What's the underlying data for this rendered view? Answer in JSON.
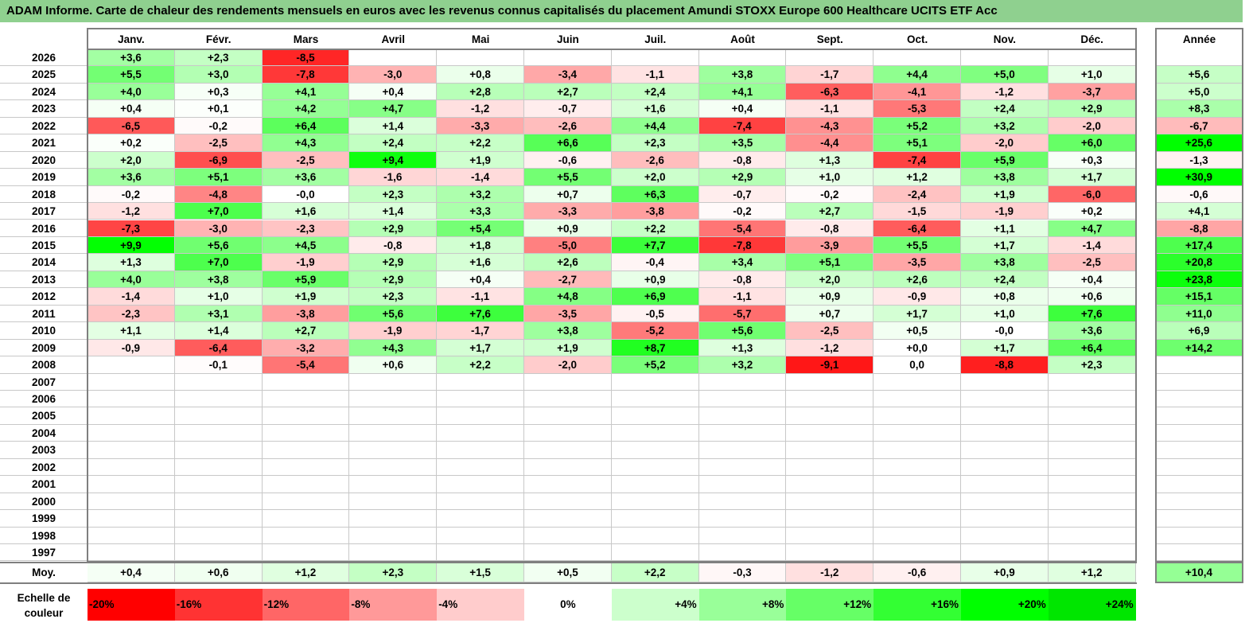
{
  "title": "ADAM Informe. Carte de chaleur des rendements mensuels en euros avec les revenus connus capitalisés du placement Amundi STOXX Europe 600 Healthcare UCITS ETF Acc",
  "chart_data": {
    "type": "heatmap",
    "months": [
      "Janv.",
      "Févr.",
      "Mars",
      "Avril",
      "Mai",
      "Juin",
      "Juil.",
      "Août",
      "Sept.",
      "Oct.",
      "Nov.",
      "Déc."
    ],
    "annual_header": "Année",
    "rows": [
      {
        "year": "2026",
        "values": [
          "+3,6",
          "+2,3",
          "-8,5",
          "",
          "",
          "",
          "",
          "",
          "",
          "",
          "",
          ""
        ],
        "annual": ""
      },
      {
        "year": "2025",
        "values": [
          "+5,5",
          "+3,0",
          "-7,8",
          "-3,0",
          "+0,8",
          "-3,4",
          "-1,1",
          "+3,8",
          "-1,7",
          "+4,4",
          "+5,0",
          "+1,0"
        ],
        "annual": "+5,6"
      },
      {
        "year": "2024",
        "values": [
          "+4,0",
          "+0,3",
          "+4,1",
          "+0,4",
          "+2,8",
          "+2,7",
          "+2,4",
          "+4,1",
          "-6,3",
          "-4,1",
          "-1,2",
          "-3,7"
        ],
        "annual": "+5,0"
      },
      {
        "year": "2023",
        "values": [
          "+0,4",
          "+0,1",
          "+4,2",
          "+4,7",
          "-1,2",
          "-0,7",
          "+1,6",
          "+0,4",
          "-1,1",
          "-5,3",
          "+2,4",
          "+2,9"
        ],
        "annual": "+8,3"
      },
      {
        "year": "2022",
        "values": [
          "-6,5",
          "-0,2",
          "+6,4",
          "+1,4",
          "-3,3",
          "-2,6",
          "+4,4",
          "-7,4",
          "-4,3",
          "+5,2",
          "+3,2",
          "-2,0"
        ],
        "annual": "-6,7"
      },
      {
        "year": "2021",
        "values": [
          "+0,2",
          "-2,5",
          "+4,3",
          "+2,4",
          "+2,2",
          "+6,6",
          "+2,3",
          "+3,5",
          "-4,4",
          "+5,1",
          "-2,0",
          "+6,0"
        ],
        "annual": "+25,6"
      },
      {
        "year": "2020",
        "values": [
          "+2,0",
          "-6,9",
          "-2,5",
          "+9,4",
          "+1,9",
          "-0,6",
          "-2,6",
          "-0,8",
          "+1,3",
          "-7,4",
          "+5,9",
          "+0,3"
        ],
        "annual": "-1,3"
      },
      {
        "year": "2019",
        "values": [
          "+3,6",
          "+5,1",
          "+3,6",
          "-1,6",
          "-1,4",
          "+5,5",
          "+2,0",
          "+2,9",
          "+1,0",
          "+1,2",
          "+3,8",
          "+1,7"
        ],
        "annual": "+30,9"
      },
      {
        "year": "2018",
        "values": [
          "-0,2",
          "-4,8",
          "-0,0",
          "+2,3",
          "+3,2",
          "+0,7",
          "+6,3",
          "-0,7",
          "-0,2",
          "-2,4",
          "+1,9",
          "-6,0"
        ],
        "annual": "-0,6"
      },
      {
        "year": "2017",
        "values": [
          "-1,2",
          "+7,0",
          "+1,6",
          "+1,4",
          "+3,3",
          "-3,3",
          "-3,8",
          "-0,2",
          "+2,7",
          "-1,5",
          "-1,9",
          "+0,2"
        ],
        "annual": "+4,1"
      },
      {
        "year": "2016",
        "values": [
          "-7,3",
          "-3,0",
          "-2,3",
          "+2,9",
          "+5,4",
          "+0,9",
          "+2,2",
          "-5,4",
          "-0,8",
          "-6,4",
          "+1,1",
          "+4,7"
        ],
        "annual": "-8,8"
      },
      {
        "year": "2015",
        "values": [
          "+9,9",
          "+5,6",
          "+4,5",
          "-0,8",
          "+1,8",
          "-5,0",
          "+7,7",
          "-7,8",
          "-3,9",
          "+5,5",
          "+1,7",
          "-1,4"
        ],
        "annual": "+17,4"
      },
      {
        "year": "2014",
        "values": [
          "+1,3",
          "+7,0",
          "-1,9",
          "+2,9",
          "+1,6",
          "+2,6",
          "-0,4",
          "+3,4",
          "+5,1",
          "-3,5",
          "+3,8",
          "-2,5"
        ],
        "annual": "+20,8"
      },
      {
        "year": "2013",
        "values": [
          "+4,0",
          "+3,8",
          "+5,9",
          "+2,9",
          "+0,4",
          "-2,7",
          "+0,9",
          "-0,8",
          "+2,0",
          "+2,6",
          "+2,4",
          "+0,4"
        ],
        "annual": "+23,8"
      },
      {
        "year": "2012",
        "values": [
          "-1,4",
          "+1,0",
          "+1,9",
          "+2,3",
          "-1,1",
          "+4,8",
          "+6,9",
          "-1,1",
          "+0,9",
          "-0,9",
          "+0,8",
          "+0,6"
        ],
        "annual": "+15,1"
      },
      {
        "year": "2011",
        "values": [
          "-2,3",
          "+3,1",
          "-3,8",
          "+5,6",
          "+7,6",
          "-3,5",
          "-0,5",
          "-5,7",
          "+0,7",
          "+1,7",
          "+1,0",
          "+7,6"
        ],
        "annual": "+11,0"
      },
      {
        "year": "2010",
        "values": [
          "+1,1",
          "+1,4",
          "+2,7",
          "-1,9",
          "-1,7",
          "+3,8",
          "-5,2",
          "+5,6",
          "-2,5",
          "+0,5",
          "-0,0",
          "+3,6"
        ],
        "annual": "+6,9"
      },
      {
        "year": "2009",
        "values": [
          "-0,9",
          "-6,4",
          "-3,2",
          "+4,3",
          "+1,7",
          "+1,9",
          "+8,7",
          "+1,3",
          "-1,2",
          "+0,0",
          "+1,7",
          "+6,4"
        ],
        "annual": "+14,2"
      },
      {
        "year": "2008",
        "values": [
          "",
          "-0,1",
          "-5,4",
          "+0,6",
          "+2,2",
          "-2,0",
          "+5,2",
          "+3,2",
          "-9,1",
          "0,0",
          "-8,8",
          "+2,3"
        ],
        "annual": ""
      },
      {
        "year": "2007",
        "values": [
          "",
          "",
          "",
          "",
          "",
          "",
          "",
          "",
          "",
          "",
          "",
          ""
        ],
        "annual": ""
      },
      {
        "year": "2006",
        "values": [
          "",
          "",
          "",
          "",
          "",
          "",
          "",
          "",
          "",
          "",
          "",
          ""
        ],
        "annual": ""
      },
      {
        "year": "2005",
        "values": [
          "",
          "",
          "",
          "",
          "",
          "",
          "",
          "",
          "",
          "",
          "",
          ""
        ],
        "annual": ""
      },
      {
        "year": "2004",
        "values": [
          "",
          "",
          "",
          "",
          "",
          "",
          "",
          "",
          "",
          "",
          "",
          ""
        ],
        "annual": ""
      },
      {
        "year": "2003",
        "values": [
          "",
          "",
          "",
          "",
          "",
          "",
          "",
          "",
          "",
          "",
          "",
          ""
        ],
        "annual": ""
      },
      {
        "year": "2002",
        "values": [
          "",
          "",
          "",
          "",
          "",
          "",
          "",
          "",
          "",
          "",
          "",
          ""
        ],
        "annual": ""
      },
      {
        "year": "2001",
        "values": [
          "",
          "",
          "",
          "",
          "",
          "",
          "",
          "",
          "",
          "",
          "",
          ""
        ],
        "annual": ""
      },
      {
        "year": "2000",
        "values": [
          "",
          "",
          "",
          "",
          "",
          "",
          "",
          "",
          "",
          "",
          "",
          ""
        ],
        "annual": ""
      },
      {
        "year": "1999",
        "values": [
          "",
          "",
          "",
          "",
          "",
          "",
          "",
          "",
          "",
          "",
          "",
          ""
        ],
        "annual": ""
      },
      {
        "year": "1998",
        "values": [
          "",
          "",
          "",
          "",
          "",
          "",
          "",
          "",
          "",
          "",
          "",
          ""
        ],
        "annual": ""
      },
      {
        "year": "1997",
        "values": [
          "",
          "",
          "",
          "",
          "",
          "",
          "",
          "",
          "",
          "",
          "",
          ""
        ],
        "annual": ""
      }
    ],
    "average": {
      "label": "Moy.",
      "values": [
        "+0,4",
        "+0,6",
        "+1,2",
        "+2,3",
        "+1,5",
        "+0,5",
        "+2,2",
        "-0,3",
        "-1,2",
        "-0,6",
        "+0,9",
        "+1,2"
      ],
      "annual": "+10,4"
    },
    "color_scale": {
      "label": "Echelle de couleur",
      "stops": [
        {
          "text": "-20%",
          "value": -20,
          "color": "#ff0000"
        },
        {
          "text": "-16%",
          "value": -16,
          "color": "#ff3333"
        },
        {
          "text": "-12%",
          "value": -12,
          "color": "#ff6666"
        },
        {
          "text": "-8%",
          "value": -8,
          "color": "#ff9999"
        },
        {
          "text": "-4%",
          "value": -4,
          "color": "#ffcccc"
        },
        {
          "text": "0%",
          "value": 0,
          "color": "#ffffff"
        },
        {
          "text": "+4%",
          "value": 4,
          "color": "#ccffcc"
        },
        {
          "text": "+8%",
          "value": 8,
          "color": "#99ff99"
        },
        {
          "text": "+12%",
          "value": 12,
          "color": "#66ff66"
        },
        {
          "text": "+16%",
          "value": 16,
          "color": "#33ff33"
        },
        {
          "text": "+20%",
          "value": 20,
          "color": "#00ff00"
        },
        {
          "text": "+24%",
          "value": 24,
          "color": "#00e600"
        }
      ]
    }
  }
}
